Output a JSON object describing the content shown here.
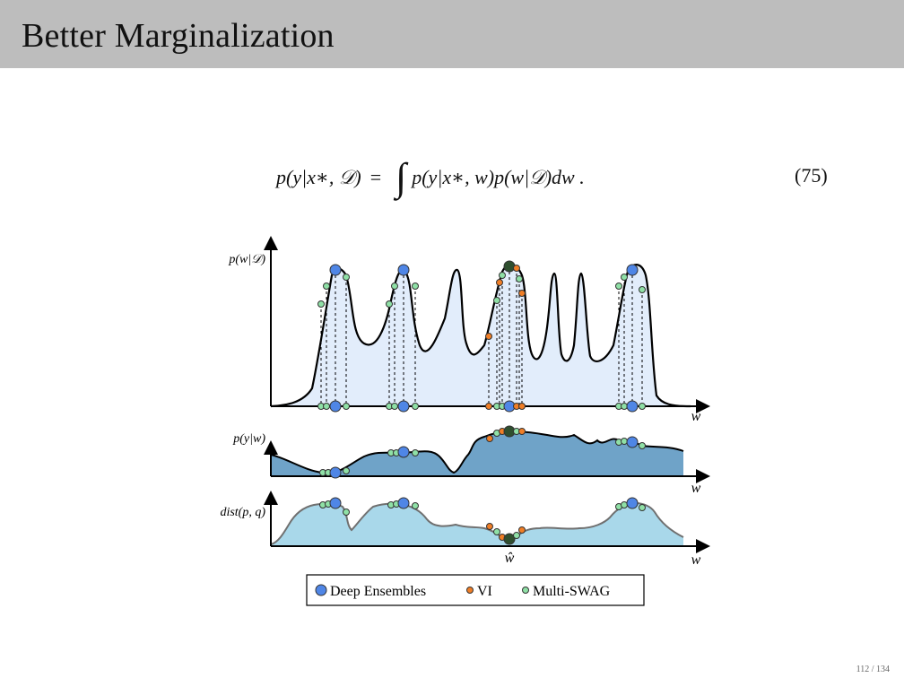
{
  "slide": {
    "title": "Better Marginalization",
    "page_number": "112 / 134"
  },
  "equation": {
    "lhs": "p(y|x∗, 𝒟)",
    "equals": "=",
    "integral": "∫",
    "rhs": "p(y|x∗, w)p(w|𝒟)dw .",
    "number": "(75)"
  },
  "figure": {
    "panels": [
      {
        "ylabel": "p(w|𝒟)",
        "xlabel": "w"
      },
      {
        "ylabel": "p(y|w)",
        "xlabel": "w"
      },
      {
        "ylabel": "dist(p, q)",
        "xlabel": "w"
      }
    ],
    "w_hat_label": "ŵ",
    "legend": [
      {
        "label": "Deep Ensembles",
        "color": "#4f86e6",
        "marker": "large-circle"
      },
      {
        "label": "VI",
        "color": "#f07e26",
        "marker": "small-circle"
      },
      {
        "label": "Multi-SWAG",
        "color": "#8fe0a6",
        "marker": "small-circle"
      }
    ],
    "colors": {
      "posterior_fill": "#e2edfb",
      "likelihood_fill": "#6fa3c8",
      "distance_fill": "#a9d8ea",
      "deep_ensemble": "#4f86e6",
      "vi": "#f07e26",
      "multiswag": "#8fe0a6",
      "dark_point": "#2f4f2f"
    }
  }
}
